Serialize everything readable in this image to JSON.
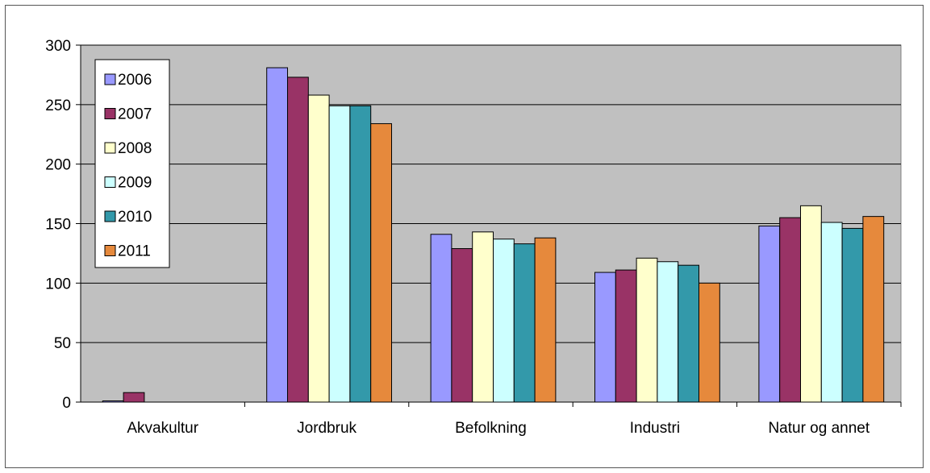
{
  "chart_data": {
    "type": "bar",
    "title": "",
    "xlabel": "",
    "ylabel": "",
    "ylim": [
      0,
      300
    ],
    "yticks": [
      0,
      50,
      100,
      150,
      200,
      250,
      300
    ],
    "grid": true,
    "legend_position": "top-left",
    "categories": [
      "Akvakultur",
      "Jordbruk",
      "Befolkning",
      "Industri",
      "Natur og annet"
    ],
    "series": [
      {
        "name": "2006",
        "color": "#9999ff",
        "values": [
          1,
          281,
          141,
          109,
          148
        ]
      },
      {
        "name": "2007",
        "color": "#993366",
        "values": [
          8,
          273,
          129,
          111,
          155
        ]
      },
      {
        "name": "2008",
        "color": "#ffffcc",
        "values": [
          0,
          258,
          143,
          121,
          165
        ]
      },
      {
        "name": "2009",
        "color": "#ccffff",
        "values": [
          0,
          249,
          137,
          118,
          151
        ]
      },
      {
        "name": "2010",
        "color": "#3399aa",
        "values": [
          0,
          249,
          133,
          115,
          146
        ]
      },
      {
        "name": "2011",
        "color": "#e6893c",
        "values": [
          0,
          234,
          138,
          100,
          156
        ]
      }
    ],
    "plot_background": "#c0c0c0"
  }
}
